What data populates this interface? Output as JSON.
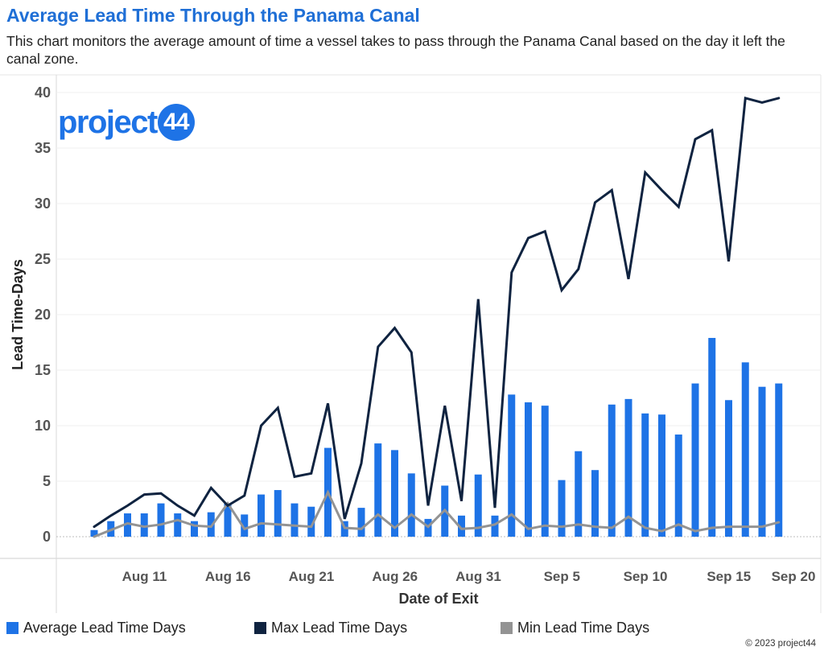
{
  "header": {
    "title": "Average Lead Time Through the Panama Canal",
    "subtitle": "This chart monitors the average amount of time a vessel takes to pass through the Panama Canal based on the day it left the canal zone."
  },
  "logo": {
    "text": "project",
    "badge": "44"
  },
  "copyright": "© 2023 project44",
  "colors": {
    "avg": "#1e73e6",
    "max": "#0f2340",
    "min": "#939393"
  },
  "legend": [
    {
      "label": "Average Lead Time Days",
      "color": "#1e73e6"
    },
    {
      "label": "Max Lead Time Days",
      "color": "#0f2340"
    },
    {
      "label": "Min Lead Time Days",
      "color": "#939393"
    }
  ],
  "chart_data": {
    "type": "bar",
    "xlabel": "Date of Exit",
    "ylabel": "Lead Time-Days",
    "ylim": [
      0,
      40
    ],
    "yticks": [
      0,
      5,
      10,
      15,
      20,
      25,
      30,
      35,
      40
    ],
    "x_ticks": [
      {
        "label": "Aug 11",
        "index": 2
      },
      {
        "label": "Aug 16",
        "index": 7
      },
      {
        "label": "Aug 21",
        "index": 12
      },
      {
        "label": "Aug 26",
        "index": 17
      },
      {
        "label": "Aug 31",
        "index": 22
      },
      {
        "label": "Sep 5",
        "index": 27
      },
      {
        "label": "Sep 10",
        "index": 32
      },
      {
        "label": "Sep 15",
        "index": 37
      },
      {
        "label": "Sep 20",
        "index": 42
      }
    ],
    "series": [
      {
        "name": "Average Lead Time Days",
        "type": "bar",
        "values": [
          0.6,
          1.4,
          2.1,
          2.1,
          3.0,
          2.1,
          1.4,
          2.2,
          3.0,
          2.0,
          3.8,
          4.2,
          3.0,
          2.7,
          8.0,
          1.4,
          2.6,
          8.4,
          7.8,
          5.7,
          1.6,
          4.6,
          1.9,
          5.6,
          1.9,
          12.8,
          12.1,
          11.8,
          5.1,
          7.7,
          6.0,
          11.9,
          12.4,
          11.1,
          11.0,
          9.2,
          13.8,
          17.9,
          12.3,
          15.7,
          13.5,
          13.8
        ]
      },
      {
        "name": "Max Lead Time Days",
        "type": "line",
        "values": [
          0.9,
          1.9,
          2.8,
          3.8,
          3.9,
          2.8,
          1.9,
          4.4,
          2.8,
          3.7,
          10.0,
          11.6,
          5.4,
          5.7,
          12.0,
          1.6,
          6.6,
          17.1,
          18.8,
          16.6,
          2.8,
          11.8,
          3.2,
          21.4,
          2.6,
          23.8,
          26.9,
          27.5,
          22.2,
          24.1,
          30.1,
          31.2,
          23.2,
          32.8,
          31.2,
          29.7,
          35.8,
          36.6,
          24.8,
          39.5,
          39.1,
          39.5
        ]
      },
      {
        "name": "Min Lead Time Days",
        "type": "line",
        "values": [
          0.0,
          0.6,
          1.2,
          0.9,
          1.1,
          1.5,
          1.0,
          0.9,
          3.0,
          0.7,
          1.2,
          1.1,
          1.0,
          0.9,
          4.0,
          0.8,
          0.7,
          2.0,
          0.8,
          2.0,
          0.9,
          2.4,
          0.7,
          0.8,
          1.1,
          2.0,
          0.7,
          1.0,
          0.9,
          1.1,
          0.9,
          0.8,
          1.8,
          0.8,
          0.5,
          1.1,
          0.5,
          0.8,
          0.9,
          0.9,
          0.9,
          1.3
        ]
      }
    ]
  }
}
